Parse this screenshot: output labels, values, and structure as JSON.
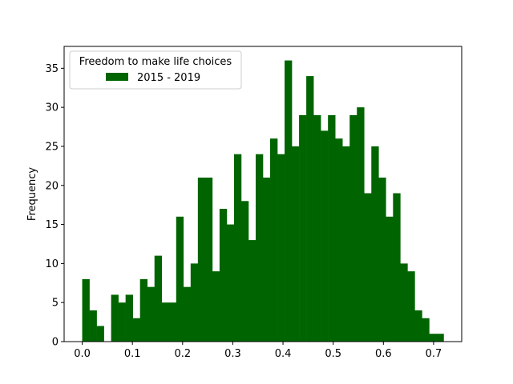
{
  "chart_data": {
    "type": "bar",
    "histogram": true,
    "bin_width": 0.0144,
    "bin_starts": [
      0.0,
      0.0144,
      0.0288,
      0.0432,
      0.0576,
      0.072,
      0.0864,
      0.1008,
      0.1152,
      0.1296,
      0.144,
      0.1584,
      0.1728,
      0.1872,
      0.2016,
      0.216,
      0.2304,
      0.2448,
      0.2592,
      0.2736,
      0.288,
      0.3024,
      0.3168,
      0.3312,
      0.3456,
      0.36,
      0.3744,
      0.3888,
      0.4032,
      0.4176,
      0.432,
      0.4464,
      0.4608,
      0.4752,
      0.4896,
      0.504,
      0.5184,
      0.5328,
      0.5472,
      0.5616,
      0.576,
      0.5904,
      0.6048,
      0.6192,
      0.6336,
      0.648,
      0.6624,
      0.6768,
      0.6912,
      0.7056
    ],
    "series": [
      {
        "name": "2015 - 2019",
        "color": "#006400",
        "values": [
          8,
          4,
          2,
          0,
          6,
          5,
          6,
          3,
          8,
          7,
          11,
          5,
          5,
          16,
          7,
          10,
          21,
          21,
          9,
          17,
          15,
          24,
          18,
          13,
          24,
          21,
          26,
          24,
          36,
          25,
          29,
          34,
          29,
          27,
          29,
          26,
          25,
          29,
          30,
          19,
          25,
          21,
          16,
          19,
          10,
          9,
          4,
          3,
          1,
          1
        ]
      }
    ],
    "ylabel": "Frequency",
    "xlabel": "",
    "xlim": [
      -0.036,
      0.756
    ],
    "ylim": [
      0,
      37.8
    ],
    "xticks": [
      0.0,
      0.1,
      0.2,
      0.3,
      0.4,
      0.5,
      0.6,
      0.7
    ],
    "xtick_labels": [
      "0.0",
      "0.1",
      "0.2",
      "0.3",
      "0.4",
      "0.5",
      "0.6",
      "0.7"
    ],
    "yticks": [
      0,
      5,
      10,
      15,
      20,
      25,
      30,
      35
    ],
    "ytick_labels": [
      "0",
      "5",
      "10",
      "15",
      "20",
      "25",
      "30",
      "35"
    ],
    "legend": {
      "title": "Freedom to make life choices",
      "placement": "upper-left"
    },
    "grid": false
  }
}
